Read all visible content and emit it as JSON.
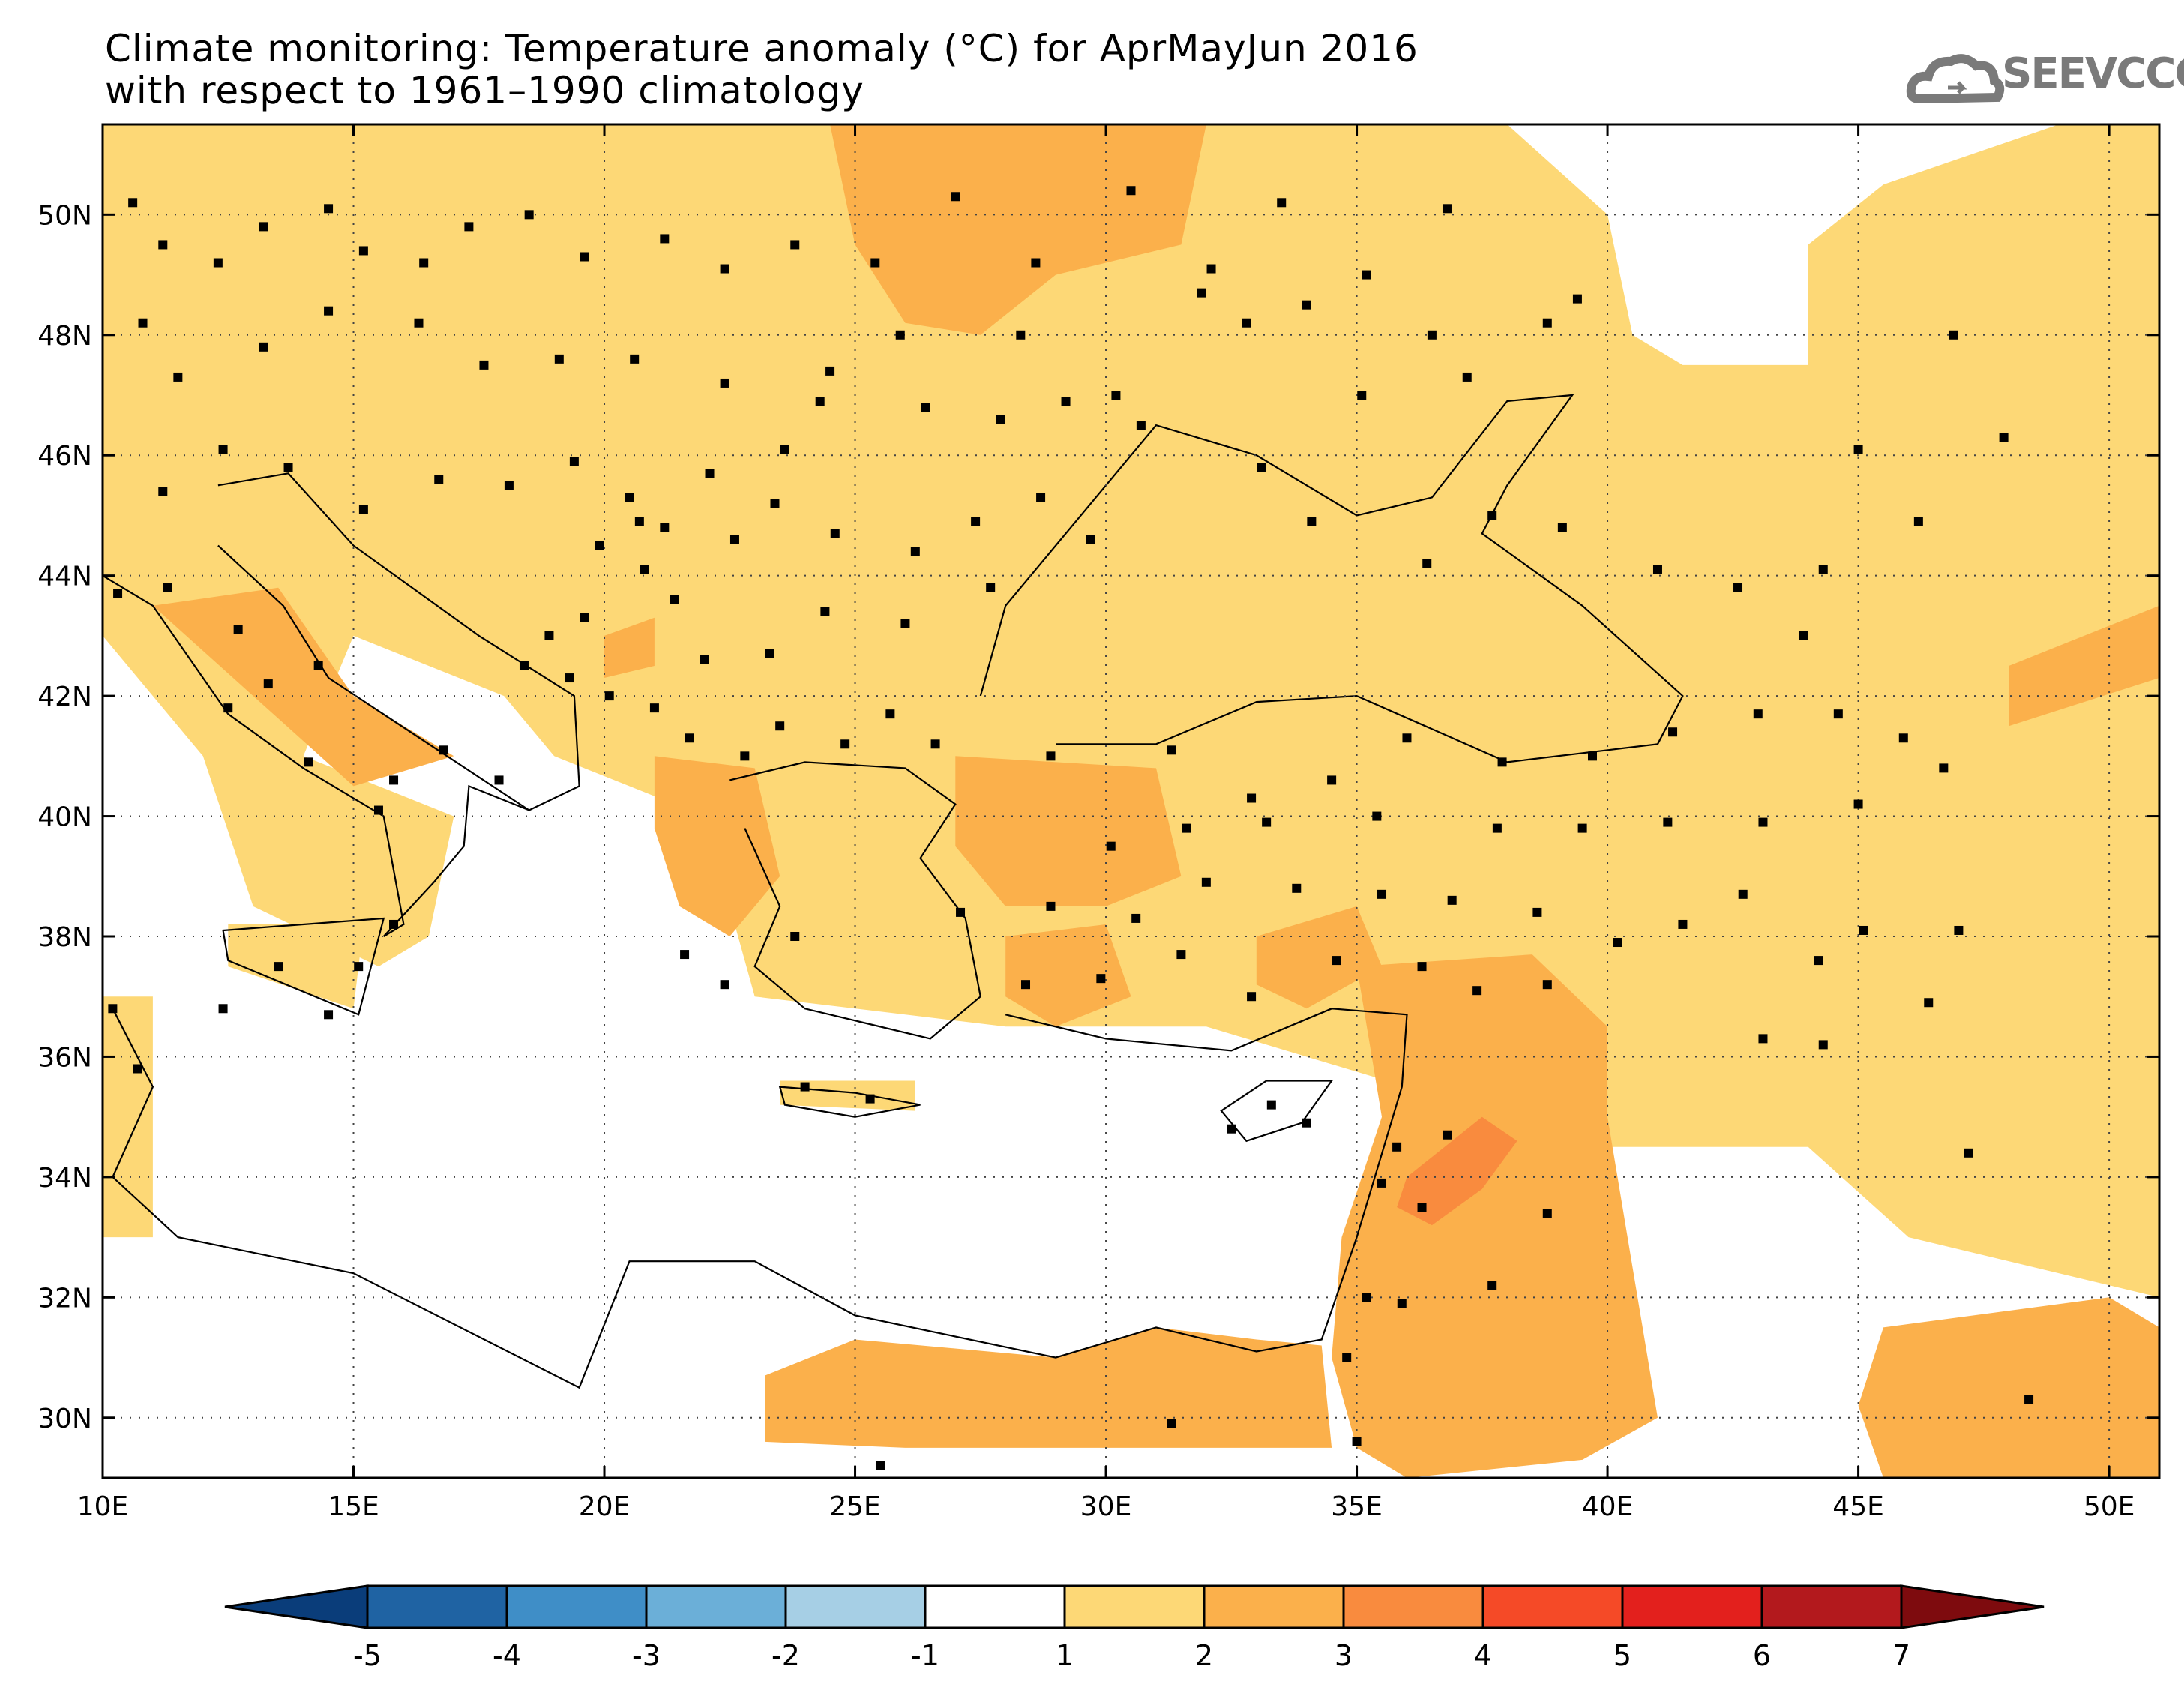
{
  "title": {
    "line1": "Climate monitoring: Temperature anomaly (°C) for AprMayJun 2016",
    "line2": "with respect to 1961–1990 climatology"
  },
  "logo": {
    "text": "SEEVCCC",
    "icon": "cloud-icon"
  },
  "map": {
    "lon_range": [
      10,
      51
    ],
    "lat_range": [
      29,
      51.5
    ],
    "lon_ticks": [
      {
        "value": 10,
        "label": "10E"
      },
      {
        "value": 15,
        "label": "15E"
      },
      {
        "value": 20,
        "label": "20E"
      },
      {
        "value": 25,
        "label": "25E"
      },
      {
        "value": 30,
        "label": "30E"
      },
      {
        "value": 35,
        "label": "35E"
      },
      {
        "value": 40,
        "label": "40E"
      },
      {
        "value": 45,
        "label": "45E"
      },
      {
        "value": 50,
        "label": "50E"
      }
    ],
    "lat_ticks": [
      {
        "value": 30,
        "label": "30N"
      },
      {
        "value": 32,
        "label": "32N"
      },
      {
        "value": 34,
        "label": "34N"
      },
      {
        "value": 36,
        "label": "36N"
      },
      {
        "value": 38,
        "label": "38N"
      },
      {
        "value": 40,
        "label": "40N"
      },
      {
        "value": 42,
        "label": "42N"
      },
      {
        "value": 44,
        "label": "44N"
      },
      {
        "value": 46,
        "label": "46N"
      },
      {
        "value": 48,
        "label": "48N"
      },
      {
        "value": 50,
        "label": "50N"
      }
    ],
    "grid": "dotted at 5° lon / 2° lat",
    "regions": [
      {
        "level": 1,
        "color": "#fdd876",
        "lonlat": [
          [
            10,
            51.5
          ],
          [
            38,
            51.5
          ],
          [
            40,
            50
          ],
          [
            40.5,
            48
          ],
          [
            41.5,
            47.5
          ],
          [
            44,
            47.5
          ],
          [
            44,
            49.5
          ],
          [
            45.5,
            50.5
          ],
          [
            49,
            51.5
          ],
          [
            51,
            51.5
          ],
          [
            51,
            32
          ],
          [
            46,
            33
          ],
          [
            44,
            34.5
          ],
          [
            40,
            34.5
          ],
          [
            36,
            35.5
          ],
          [
            32,
            36.5
          ],
          [
            28,
            36.5
          ],
          [
            23,
            37
          ],
          [
            22,
            40
          ],
          [
            19,
            41
          ],
          [
            18,
            42
          ],
          [
            15,
            43
          ],
          [
            14,
            41
          ],
          [
            17,
            40
          ],
          [
            16.5,
            38
          ],
          [
            15.5,
            37.5
          ],
          [
            13,
            38.5
          ],
          [
            12,
            41
          ],
          [
            10,
            43
          ]
        ]
      },
      {
        "level": 1,
        "color": "#fdd876",
        "lonlat": [
          [
            10,
            37
          ],
          [
            11,
            37
          ],
          [
            11,
            33
          ],
          [
            10,
            33
          ]
        ]
      },
      {
        "level": 1,
        "color": "#fdd876",
        "lonlat": [
          [
            12.5,
            38.2
          ],
          [
            15.2,
            38.2
          ],
          [
            15,
            36.8
          ],
          [
            12.5,
            37.5
          ]
        ]
      },
      {
        "level": 1,
        "color": "#fdd876",
        "lonlat": [
          [
            23.5,
            35.6
          ],
          [
            26.2,
            35.6
          ],
          [
            26.2,
            35.1
          ],
          [
            23.5,
            35.2
          ]
        ]
      },
      {
        "level": 2,
        "color": "#fbb04b",
        "lonlat": [
          [
            24.5,
            51.5
          ],
          [
            32,
            51.5
          ],
          [
            31.5,
            49.5
          ],
          [
            29,
            49
          ],
          [
            27.5,
            48
          ],
          [
            26,
            48.2
          ],
          [
            25,
            49.5
          ]
        ]
      },
      {
        "level": 2,
        "color": "#fbb04b",
        "lonlat": [
          [
            11,
            43.5
          ],
          [
            13.5,
            43.8
          ],
          [
            15,
            42
          ],
          [
            17,
            41
          ],
          [
            15,
            40.5
          ],
          [
            13,
            42
          ]
        ]
      },
      {
        "level": 2,
        "color": "#fbb04b",
        "lonlat": [
          [
            20,
            43
          ],
          [
            21,
            43.3
          ],
          [
            21,
            42.5
          ],
          [
            20,
            42.3
          ]
        ]
      },
      {
        "level": 2,
        "color": "#fbb04b",
        "lonlat": [
          [
            21,
            41
          ],
          [
            23,
            40.8
          ],
          [
            23.5,
            39
          ],
          [
            22.5,
            38
          ],
          [
            21.5,
            38.5
          ],
          [
            21,
            39.8
          ]
        ]
      },
      {
        "level": 2,
        "color": "#fbb04b",
        "lonlat": [
          [
            27,
            41
          ],
          [
            31,
            40.8
          ],
          [
            31.5,
            39
          ],
          [
            30,
            38.5
          ],
          [
            28,
            38.5
          ],
          [
            27,
            39.5
          ]
        ]
      },
      {
        "level": 2,
        "color": "#fbb04b",
        "lonlat": [
          [
            28,
            38
          ],
          [
            30,
            38.2
          ],
          [
            30.5,
            37
          ],
          [
            29,
            36.5
          ],
          [
            28,
            37
          ]
        ]
      },
      {
        "level": 2,
        "color": "#fbb04b",
        "lonlat": [
          [
            33,
            38
          ],
          [
            35,
            38.5
          ],
          [
            35.5,
            37.5
          ],
          [
            34,
            36.8
          ],
          [
            33,
            37.2
          ]
        ]
      },
      {
        "level": 2,
        "color": "#fbb04b",
        "lonlat": [
          [
            35,
            37.5
          ],
          [
            38.5,
            37.7
          ],
          [
            40,
            36.5
          ],
          [
            40,
            35
          ],
          [
            40.5,
            32.5
          ],
          [
            41,
            30
          ],
          [
            39.5,
            29.3
          ],
          [
            36,
            29
          ],
          [
            35,
            29.5
          ],
          [
            34.5,
            31
          ],
          [
            34.7,
            33
          ],
          [
            35.5,
            35
          ]
        ]
      },
      {
        "level": 2,
        "color": "#fbb04b",
        "lonlat": [
          [
            23.2,
            30.7
          ],
          [
            25,
            31.3
          ],
          [
            29,
            31
          ],
          [
            31,
            31.5
          ],
          [
            33,
            31.3
          ],
          [
            34.3,
            31.2
          ],
          [
            34.5,
            29.5
          ],
          [
            26,
            29.5
          ],
          [
            23.2,
            29.6
          ]
        ]
      },
      {
        "level": 2,
        "color": "#fbb04b",
        "lonlat": [
          [
            45.5,
            31.5
          ],
          [
            50,
            32
          ],
          [
            51,
            31.5
          ],
          [
            51,
            29
          ],
          [
            45.5,
            29
          ],
          [
            45,
            30.2
          ]
        ]
      },
      {
        "level": 2,
        "color": "#fbb04b",
        "lonlat": [
          [
            48,
            42.5
          ],
          [
            51,
            43.5
          ],
          [
            51,
            42.3
          ],
          [
            48,
            41.5
          ]
        ]
      },
      {
        "level": 3,
        "color": "#f98b3e",
        "lonlat": [
          [
            36,
            34
          ],
          [
            37.5,
            35
          ],
          [
            38.2,
            34.6
          ],
          [
            37.5,
            33.8
          ],
          [
            36.5,
            33.2
          ],
          [
            35.8,
            33.5
          ]
        ]
      }
    ],
    "stations": [
      [
        10.6,
        50.2
      ],
      [
        11.2,
        49.5
      ],
      [
        12.3,
        49.2
      ],
      [
        13.2,
        49.8
      ],
      [
        14.5,
        50.1
      ],
      [
        15.2,
        49.4
      ],
      [
        16.4,
        49.2
      ],
      [
        17.3,
        49.8
      ],
      [
        18.5,
        50.0
      ],
      [
        19.6,
        49.3
      ],
      [
        21.2,
        49.6
      ],
      [
        22.4,
        49.1
      ],
      [
        23.8,
        49.5
      ],
      [
        25.4,
        49.2
      ],
      [
        27.0,
        50.3
      ],
      [
        28.6,
        49.2
      ],
      [
        30.5,
        50.4
      ],
      [
        32.1,
        49.1
      ],
      [
        33.5,
        50.2
      ],
      [
        35.2,
        49.0
      ],
      [
        36.8,
        50.1
      ],
      [
        39.4,
        48.6
      ],
      [
        31.9,
        48.7
      ],
      [
        28.3,
        48.0
      ],
      [
        25.9,
        48.0
      ],
      [
        24.5,
        47.4
      ],
      [
        22.4,
        47.2
      ],
      [
        20.6,
        47.6
      ],
      [
        19.1,
        47.6
      ],
      [
        17.6,
        47.5
      ],
      [
        16.3,
        48.2
      ],
      [
        14.5,
        48.4
      ],
      [
        13.2,
        47.8
      ],
      [
        11.5,
        47.3
      ],
      [
        10.8,
        48.2
      ],
      [
        11.2,
        45.4
      ],
      [
        12.4,
        46.1
      ],
      [
        13.7,
        45.8
      ],
      [
        15.2,
        45.1
      ],
      [
        16.7,
        45.6
      ],
      [
        18.1,
        45.5
      ],
      [
        19.4,
        45.9
      ],
      [
        20.5,
        45.3
      ],
      [
        21.2,
        44.8
      ],
      [
        22.1,
        45.7
      ],
      [
        23.4,
        45.2
      ],
      [
        24.6,
        44.7
      ],
      [
        26.2,
        44.4
      ],
      [
        27.4,
        44.9
      ],
      [
        28.7,
        45.3
      ],
      [
        29.7,
        44.6
      ],
      [
        27.7,
        43.8
      ],
      [
        26.0,
        43.2
      ],
      [
        24.4,
        43.4
      ],
      [
        23.3,
        42.7
      ],
      [
        22.0,
        42.6
      ],
      [
        21.4,
        43.6
      ],
      [
        20.8,
        44.1
      ],
      [
        19.9,
        44.5
      ],
      [
        19.6,
        43.3
      ],
      [
        18.9,
        43.0
      ],
      [
        18.4,
        42.5
      ],
      [
        19.3,
        42.3
      ],
      [
        20.1,
        42.0
      ],
      [
        21.0,
        41.8
      ],
      [
        21.7,
        41.3
      ],
      [
        22.8,
        41.0
      ],
      [
        23.5,
        41.5
      ],
      [
        24.8,
        41.2
      ],
      [
        25.7,
        41.7
      ],
      [
        26.6,
        41.2
      ],
      [
        28.9,
        41.0
      ],
      [
        31.3,
        41.1
      ],
      [
        32.9,
        40.3
      ],
      [
        34.5,
        40.6
      ],
      [
        36.0,
        41.3
      ],
      [
        37.9,
        40.9
      ],
      [
        39.7,
        41.0
      ],
      [
        41.3,
        41.4
      ],
      [
        43.0,
        41.7
      ],
      [
        44.6,
        41.7
      ],
      [
        45.9,
        41.3
      ],
      [
        46.7,
        40.8
      ],
      [
        45.0,
        40.2
      ],
      [
        43.1,
        39.9
      ],
      [
        41.2,
        39.9
      ],
      [
        39.5,
        39.8
      ],
      [
        37.8,
        39.8
      ],
      [
        35.4,
        40.0
      ],
      [
        33.2,
        39.9
      ],
      [
        31.6,
        39.8
      ],
      [
        30.1,
        39.5
      ],
      [
        28.9,
        38.5
      ],
      [
        27.1,
        38.4
      ],
      [
        28.4,
        37.2
      ],
      [
        29.9,
        37.3
      ],
      [
        31.5,
        37.7
      ],
      [
        32.9,
        37.0
      ],
      [
        34.6,
        37.6
      ],
      [
        36.3,
        37.5
      ],
      [
        37.4,
        37.1
      ],
      [
        38.8,
        37.2
      ],
      [
        40.2,
        37.9
      ],
      [
        41.5,
        38.2
      ],
      [
        42.7,
        38.7
      ],
      [
        44.2,
        37.6
      ],
      [
        45.1,
        38.1
      ],
      [
        47.0,
        38.1
      ],
      [
        46.4,
        36.9
      ],
      [
        44.3,
        36.2
      ],
      [
        43.1,
        36.3
      ],
      [
        38.6,
        38.4
      ],
      [
        36.9,
        38.6
      ],
      [
        35.5,
        38.7
      ],
      [
        33.8,
        38.8
      ],
      [
        32.0,
        38.9
      ],
      [
        30.6,
        38.3
      ],
      [
        16.8,
        41.1
      ],
      [
        17.9,
        40.6
      ],
      [
        15.8,
        40.6
      ],
      [
        14.1,
        40.9
      ],
      [
        13.3,
        42.2
      ],
      [
        12.5,
        41.8
      ],
      [
        11.3,
        43.8
      ],
      [
        10.3,
        43.7
      ],
      [
        12.7,
        43.1
      ],
      [
        14.3,
        42.5
      ],
      [
        15.5,
        40.1
      ],
      [
        13.5,
        37.5
      ],
      [
        15.1,
        37.5
      ],
      [
        14.5,
        36.7
      ],
      [
        12.4,
        36.8
      ],
      [
        15.8,
        38.2
      ],
      [
        23.8,
        38.0
      ],
      [
        22.4,
        37.2
      ],
      [
        21.6,
        37.7
      ],
      [
        25.3,
        35.3
      ],
      [
        24.0,
        35.5
      ],
      [
        33.3,
        35.2
      ],
      [
        32.5,
        34.8
      ],
      [
        34.0,
        34.9
      ],
      [
        35.5,
        33.9
      ],
      [
        35.8,
        34.5
      ],
      [
        36.3,
        33.5
      ],
      [
        36.8,
        34.7
      ],
      [
        35.2,
        32.0
      ],
      [
        35.9,
        31.9
      ],
      [
        37.7,
        32.2
      ],
      [
        38.8,
        33.4
      ],
      [
        34.8,
        31.0
      ],
      [
        35.0,
        29.6
      ],
      [
        31.3,
        29.9
      ],
      [
        25.5,
        29.2
      ],
      [
        10.2,
        36.8
      ],
      [
        10.7,
        35.8
      ],
      [
        47.2,
        34.4
      ],
      [
        48.4,
        30.3
      ],
      [
        46.2,
        44.9
      ],
      [
        47.9,
        46.3
      ],
      [
        45.0,
        46.1
      ],
      [
        44.3,
        44.1
      ],
      [
        43.9,
        43.0
      ],
      [
        42.6,
        43.8
      ],
      [
        41.0,
        44.1
      ],
      [
        39.1,
        44.8
      ],
      [
        37.7,
        45.0
      ],
      [
        36.4,
        44.2
      ],
      [
        34.1,
        44.9
      ],
      [
        33.1,
        45.8
      ],
      [
        35.1,
        47.0
      ],
      [
        37.2,
        47.3
      ],
      [
        30.7,
        46.5
      ],
      [
        29.2,
        46.9
      ],
      [
        27.9,
        46.6
      ],
      [
        26.4,
        46.8
      ],
      [
        24.3,
        46.9
      ],
      [
        23.6,
        46.1
      ],
      [
        22.6,
        44.6
      ],
      [
        20.7,
        44.9
      ],
      [
        30.2,
        47.0
      ],
      [
        32.8,
        48.2
      ],
      [
        34.0,
        48.5
      ],
      [
        36.5,
        48.0
      ],
      [
        38.8,
        48.2
      ],
      [
        46.9,
        48.0
      ]
    ]
  },
  "colorbar": {
    "labels": [
      "-5",
      "-4",
      "-3",
      "-2",
      "-1",
      "1",
      "2",
      "3",
      "4",
      "5",
      "6",
      "7"
    ],
    "colors": [
      "#0a3d7a",
      "#1f63a3",
      "#3f8ec7",
      "#6bafd8",
      "#a6cfe5",
      "#ffffff",
      "#fdd876",
      "#fbb04b",
      "#f98b3e",
      "#f54a27",
      "#e3201d",
      "#b3191d",
      "#7e0b0e"
    ]
  },
  "chart_data": {
    "type": "heatmap",
    "title": "Climate monitoring: Temperature anomaly (°C) for AprMayJun 2016",
    "subtitle": "with respect to 1961–1990 climatology",
    "xlabel": "",
    "ylabel": "",
    "xlim": [
      10,
      51
    ],
    "ylim": [
      29,
      51.5
    ],
    "color_levels": [
      -5,
      -4,
      -3,
      -2,
      -1,
      1,
      2,
      3,
      4,
      5,
      6,
      7
    ],
    "grid": true
  }
}
